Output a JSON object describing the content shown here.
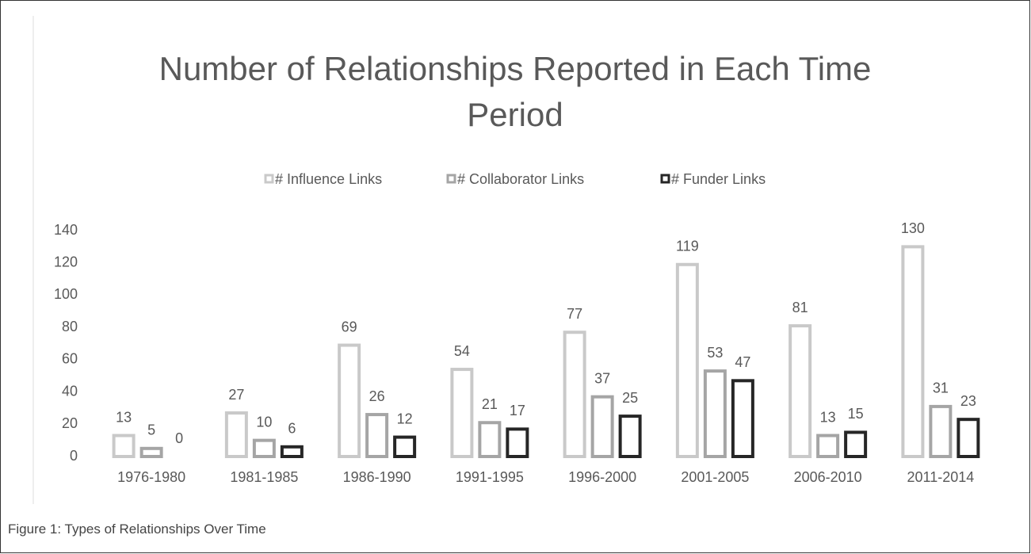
{
  "chart_data": {
    "type": "bar",
    "title": "Number of Relationships Reported in Each Time Period",
    "caption": "Figure 1: Types of Relationships Over Time",
    "categories": [
      "1976-1980",
      "1981-1985",
      "1986-1990",
      "1991-1995",
      "1996-2000",
      "2001-2005",
      "2006-2010",
      "2011-2014"
    ],
    "series": [
      {
        "name": "# Influence Links",
        "color": "#c9c9c9",
        "values": [
          13,
          27,
          69,
          54,
          77,
          119,
          81,
          130
        ]
      },
      {
        "name": "# Collaborator Links",
        "color": "#a5a5a5",
        "values": [
          5,
          10,
          26,
          21,
          37,
          53,
          13,
          31
        ]
      },
      {
        "name": "# Funder Links",
        "color": "#262626",
        "values": [
          0,
          6,
          12,
          17,
          25,
          47,
          15,
          23
        ]
      }
    ],
    "ylim": [
      0,
      140
    ],
    "yticks": [
      0,
      20,
      40,
      60,
      80,
      100,
      120,
      140
    ],
    "grid": false,
    "legend": "top",
    "data_labels": true
  }
}
